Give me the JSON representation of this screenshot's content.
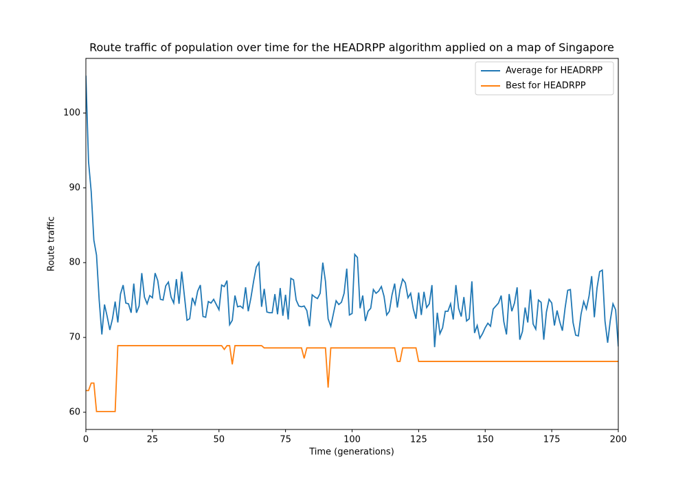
{
  "chart_data": {
    "type": "line",
    "title": "Route traffic of population over time for the HEADRPP algorithm applied on a map of Singapore",
    "xlabel": "Time (generations)",
    "ylabel": "Route traffic",
    "x": [
      0,
      1,
      2,
      3,
      4,
      5,
      6,
      7,
      8,
      9,
      10,
      11,
      12,
      13,
      14,
      15,
      16,
      17,
      18,
      19,
      20,
      21,
      22,
      23,
      24,
      25,
      26,
      27,
      28,
      29,
      30,
      31,
      32,
      33,
      34,
      35,
      36,
      37,
      38,
      39,
      40,
      41,
      42,
      43,
      44,
      45,
      46,
      47,
      48,
      49,
      50,
      51,
      52,
      53,
      54,
      55,
      56,
      57,
      58,
      59,
      60,
      61,
      62,
      63,
      64,
      65,
      66,
      67,
      68,
      69,
      70,
      71,
      72,
      73,
      74,
      75,
      76,
      77,
      78,
      79,
      80,
      81,
      82,
      83,
      84,
      85,
      86,
      87,
      88,
      89,
      90,
      91,
      92,
      93,
      94,
      95,
      96,
      97,
      98,
      99,
      100,
      101,
      102,
      103,
      104,
      105,
      106,
      107,
      108,
      109,
      110,
      111,
      112,
      113,
      114,
      115,
      116,
      117,
      118,
      119,
      120,
      121,
      122,
      123,
      124,
      125,
      126,
      127,
      128,
      129,
      130,
      131,
      132,
      133,
      134,
      135,
      136,
      137,
      138,
      139,
      140,
      141,
      142,
      143,
      144,
      145,
      146,
      147,
      148,
      149,
      150,
      151,
      152,
      153,
      154,
      155,
      156,
      157,
      158,
      159,
      160,
      161,
      162,
      163,
      164,
      165,
      166,
      167,
      168,
      169,
      170,
      171,
      172,
      173,
      174,
      175,
      176,
      177,
      178,
      179,
      180,
      181,
      182,
      183,
      184,
      185,
      186,
      187,
      188,
      189,
      190,
      191,
      192,
      193,
      194,
      195,
      196,
      197,
      198,
      199,
      200
    ],
    "series": [
      {
        "name": "Average for HEADRPP",
        "color": "#1f77b4",
        "values": [
          105,
          93.5,
          89.5,
          83,
          81,
          75,
          70.4,
          74.4,
          72.8,
          71,
          72.5,
          74.8,
          72,
          75.8,
          77,
          74.6,
          74.5,
          73.3,
          77.2,
          73.3,
          74.2,
          78.6,
          75.4,
          74.5,
          75.6,
          75.3,
          78.6,
          77.6,
          75.1,
          75,
          76.9,
          77.4,
          75.4,
          74.6,
          77.8,
          74.5,
          78.8,
          75.6,
          72.3,
          72.5,
          75.3,
          74.4,
          76.2,
          77,
          72.8,
          72.7,
          74.8,
          74.6,
          75.1,
          74.4,
          73.7,
          77,
          76.8,
          77.6,
          71.7,
          72.3,
          75.6,
          74.1,
          74.2,
          73.9,
          76.7,
          73.5,
          75.3,
          77.5,
          79.4,
          80,
          74.1,
          76.5,
          73.4,
          73.3,
          73.3,
          75.8,
          73.1,
          76.6,
          72.9,
          75.7,
          72.4,
          77.9,
          77.7,
          75,
          74.2,
          74.1,
          74.2,
          73.6,
          71.5,
          75.7,
          75.4,
          75.2,
          75.9,
          80,
          77.5,
          72.5,
          71.5,
          73.2,
          74.9,
          74.4,
          74.7,
          75.9,
          79.2,
          73,
          73.2,
          81.1,
          80.7,
          73.9,
          75.6,
          72.2,
          73.5,
          73.9,
          76.4,
          75.9,
          76.2,
          76.8,
          75.5,
          73,
          73.5,
          75.7,
          77.2,
          74,
          76.4,
          77.8,
          77.3,
          75.3,
          75.9,
          73.8,
          72.5,
          76,
          73,
          76.1,
          74,
          74.5,
          77,
          68.7,
          73.3,
          70.5,
          71.3,
          73.5,
          73.5,
          74.5,
          72.4,
          77,
          73.9,
          72.8,
          75.4,
          72.2,
          72.5,
          77.5,
          70.6,
          71.6,
          69.9,
          70.5,
          71.3,
          71.9,
          71.5,
          73.8,
          74.2,
          74.6,
          75.6,
          72.1,
          70.4,
          75.8,
          73.5,
          74.6,
          76.7,
          69.7,
          70.8,
          74,
          72,
          76.4,
          71.8,
          71.1,
          75,
          74.7,
          69.7,
          73.4,
          75.1,
          74.6,
          71.6,
          73.6,
          72.1,
          70.9,
          73.9,
          76.3,
          76.4,
          72,
          70.3,
          70.2,
          73.1,
          74.8,
          73.8,
          75.5,
          78.2,
          72.7,
          76.6,
          78.8,
          79,
          72.2,
          69.3,
          72.3,
          74.5,
          73.7,
          68.8
        ]
      },
      {
        "name": "Best for HEADRPP",
        "color": "#ff7f0e",
        "values": [
          62.9,
          62.9,
          63.9,
          63.9,
          60.1,
          60.1,
          60.1,
          60.1,
          60.1,
          60.1,
          60.1,
          60.1,
          68.9,
          68.9,
          68.9,
          68.9,
          68.9,
          68.9,
          68.9,
          68.9,
          68.9,
          68.9,
          68.9,
          68.9,
          68.9,
          68.9,
          68.9,
          68.9,
          68.9,
          68.9,
          68.9,
          68.9,
          68.9,
          68.9,
          68.9,
          68.9,
          68.9,
          68.9,
          68.9,
          68.9,
          68.9,
          68.9,
          68.9,
          68.9,
          68.9,
          68.9,
          68.9,
          68.9,
          68.9,
          68.9,
          68.9,
          68.9,
          68.4,
          68.9,
          68.9,
          66.4,
          68.9,
          68.9,
          68.9,
          68.9,
          68.9,
          68.9,
          68.9,
          68.9,
          68.9,
          68.9,
          68.9,
          68.6,
          68.6,
          68.6,
          68.6,
          68.6,
          68.6,
          68.6,
          68.6,
          68.6,
          68.6,
          68.6,
          68.6,
          68.6,
          68.6,
          68.6,
          67.2,
          68.6,
          68.6,
          68.6,
          68.6,
          68.6,
          68.6,
          68.6,
          68.6,
          63.3,
          68.6,
          68.6,
          68.6,
          68.6,
          68.6,
          68.6,
          68.6,
          68.6,
          68.6,
          68.6,
          68.6,
          68.6,
          68.6,
          68.6,
          68.6,
          68.6,
          68.6,
          68.6,
          68.6,
          68.6,
          68.6,
          68.6,
          68.6,
          68.6,
          68.6,
          66.8,
          66.8,
          68.6,
          68.6,
          68.6,
          68.6,
          68.6,
          68.6,
          66.8,
          66.8,
          66.8,
          66.8,
          66.8,
          66.8,
          66.8,
          66.8,
          66.8,
          66.8,
          66.8,
          66.8,
          66.8,
          66.8,
          66.8,
          66.8,
          66.8,
          66.8,
          66.8,
          66.8,
          66.8,
          66.8,
          66.8,
          66.8,
          66.8,
          66.8,
          66.8,
          66.8,
          66.8,
          66.8,
          66.8,
          66.8,
          66.8,
          66.8,
          66.8,
          66.8,
          66.8,
          66.8,
          66.8,
          66.8,
          66.8,
          66.8,
          66.8,
          66.8,
          66.8,
          66.8,
          66.8,
          66.8,
          66.8,
          66.8,
          66.8,
          66.8,
          66.8,
          66.8,
          66.8,
          66.8,
          66.8,
          66.8,
          66.8,
          66.8,
          66.8,
          66.8,
          66.8,
          66.8,
          66.8,
          66.8,
          66.8,
          66.8,
          66.8,
          66.8,
          66.8,
          66.8,
          66.8,
          66.8,
          66.8,
          66.8
        ]
      }
    ],
    "xlim": [
      0,
      200
    ],
    "xticks": [
      0,
      25,
      50,
      75,
      100,
      125,
      150,
      175,
      200
    ],
    "ylim": [
      57.7,
      107.3
    ],
    "yticks": [
      60,
      70,
      80,
      90,
      100
    ],
    "legend": "upper right"
  }
}
